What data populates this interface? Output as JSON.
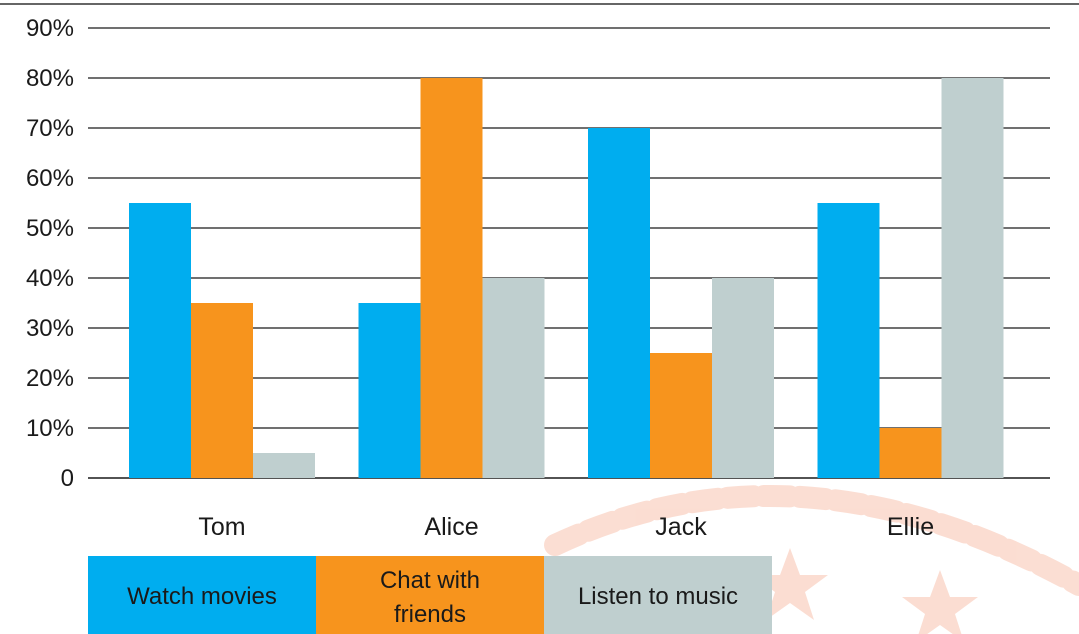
{
  "chart_data": {
    "type": "bar",
    "categories": [
      "Tom",
      "Alice",
      "Jack",
      "Ellie"
    ],
    "series": [
      {
        "name": "Watch movies",
        "values": [
          55,
          35,
          70,
          55
        ],
        "color": "#00adef"
      },
      {
        "name": "Chat with friends",
        "values": [
          35,
          80,
          25,
          10
        ],
        "color": "#f7941d"
      },
      {
        "name": "Listen to music",
        "values": [
          5,
          40,
          40,
          80
        ],
        "color": "#bfcfcf"
      }
    ],
    "ylim": [
      0,
      90
    ],
    "yticks": [
      "0",
      "10%",
      "20%",
      "30%",
      "40%",
      "50%",
      "60%",
      "70%",
      "80%",
      "90%"
    ],
    "grid": true,
    "legend_position": "bottom-left",
    "title": "",
    "xlabel": "",
    "ylabel": ""
  }
}
